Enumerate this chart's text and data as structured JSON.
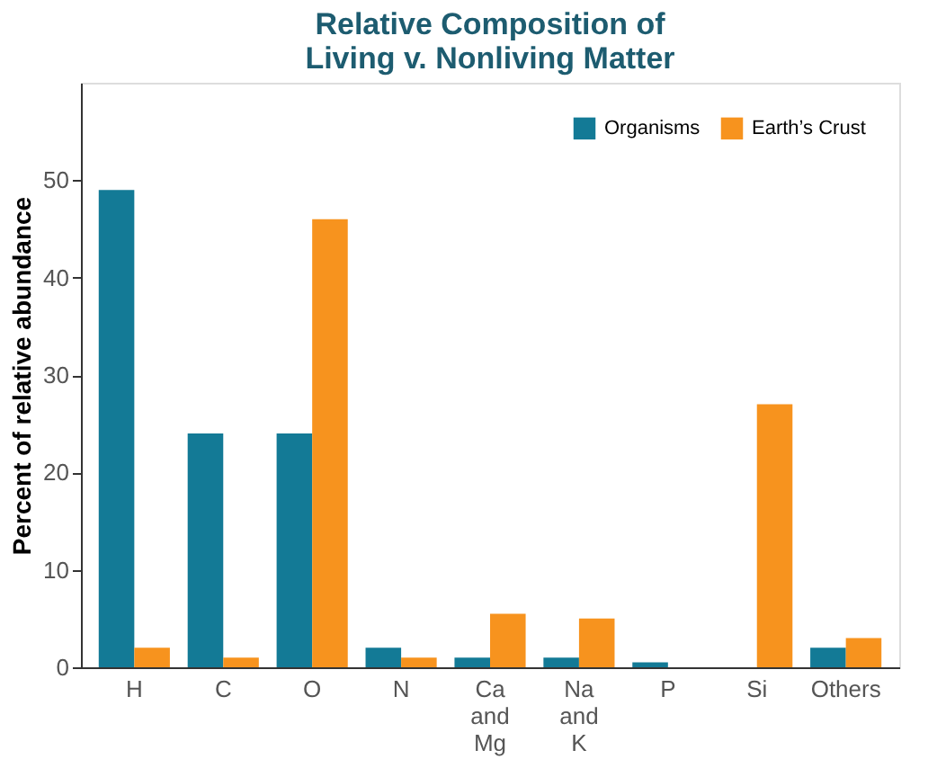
{
  "chart_data": {
    "type": "bar",
    "title": "Relative Composition of\nLiving v. Nonliving Matter",
    "ylabel": "Percent of relative abundance",
    "categories": [
      "H",
      "C",
      "O",
      "N",
      "Ca and Mg",
      "Na and K",
      "P",
      "Si",
      "Others"
    ],
    "series": [
      {
        "name": "Organisms",
        "color": "#137a96",
        "values": [
          49,
          24,
          24,
          2,
          1,
          1,
          0.5,
          0,
          2
        ]
      },
      {
        "name": "Earth’s Crust",
        "color": "#f7931e",
        "values": [
          2,
          1,
          46,
          1,
          5.5,
          5,
          0,
          27,
          3
        ]
      }
    ],
    "ylim": [
      0,
      60
    ],
    "yticks": [
      0,
      10,
      20,
      30,
      40,
      50
    ],
    "grid": false,
    "legend": "top right"
  }
}
